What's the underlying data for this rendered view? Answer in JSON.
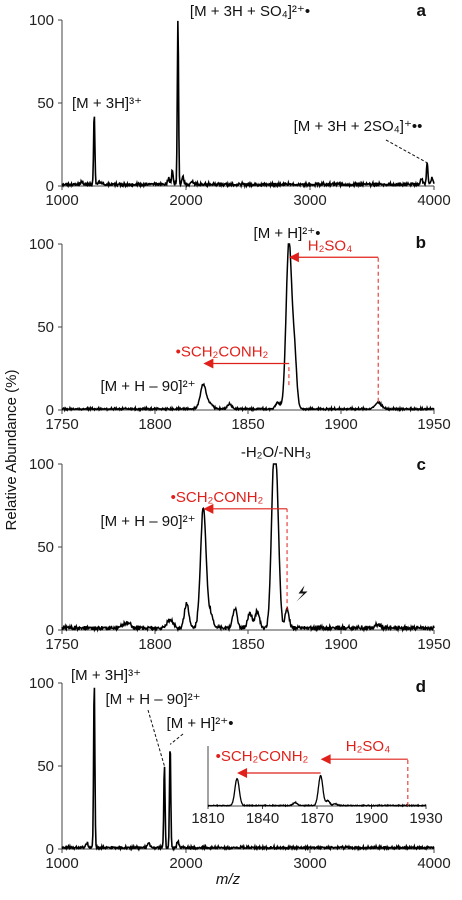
{
  "figure": {
    "ylabel": "Relative Abundance (%)",
    "xlabel": "m/z"
  },
  "colors": {
    "spectrum": "#000000",
    "annotation_red": "#e0201a",
    "leader": "#000000"
  },
  "chart_data": [
    {
      "type": "line",
      "panel": "a",
      "xlim": [
        1000,
        4000
      ],
      "ylim": [
        0,
        100
      ],
      "xticks": [
        1000,
        2000,
        3000,
        4000
      ],
      "yticks": [
        0,
        50,
        100
      ],
      "peaks": [
        {
          "x": 1160,
          "y": 2,
          "w": 8
        },
        {
          "x": 1260,
          "y": 43,
          "w": 5
        },
        {
          "x": 1300,
          "y": 2,
          "w": 8
        },
        {
          "x": 1860,
          "y": 4,
          "w": 8
        },
        {
          "x": 1890,
          "y": 9,
          "w": 6
        },
        {
          "x": 1935,
          "y": 100,
          "w": 5
        },
        {
          "x": 1975,
          "y": 5,
          "w": 8
        },
        {
          "x": 2050,
          "y": 2,
          "w": 10
        },
        {
          "x": 3900,
          "y": 3,
          "w": 10
        },
        {
          "x": 3945,
          "y": 13,
          "w": 6
        },
        {
          "x": 3985,
          "y": 4,
          "w": 8
        }
      ],
      "noise": 1.2,
      "labels": [
        {
          "text": "[M + 3H + SO₄]²⁺•",
          "x": 1935,
          "y": 100
        },
        {
          "text": "[M + 3H]³⁺",
          "x": 1260,
          "y": 43
        },
        {
          "text": "[M + 3H + 2SO₄]⁺••",
          "x": 3945,
          "y": 13
        }
      ]
    },
    {
      "type": "line",
      "panel": "b",
      "xlim": [
        1750,
        1950
      ],
      "ylim": [
        0,
        100
      ],
      "xticks": [
        1750,
        1800,
        1850,
        1900,
        1950
      ],
      "yticks": [
        0,
        50,
        100
      ],
      "peaks": [
        {
          "x": 1826,
          "y": 15,
          "w": 1.6
        },
        {
          "x": 1830,
          "y": 3,
          "w": 1.2
        },
        {
          "x": 1840,
          "y": 3,
          "w": 1.2
        },
        {
          "x": 1866,
          "y": 4,
          "w": 1.2
        },
        {
          "x": 1872,
          "y": 100,
          "w": 1.5
        },
        {
          "x": 1875,
          "y": 30,
          "w": 1.2
        },
        {
          "x": 1920,
          "y": 4,
          "w": 1.6
        }
      ],
      "noise": 0.8,
      "labels": [
        {
          "text": "[M + H]²⁺•",
          "x": 1872,
          "y": 100
        },
        {
          "text": "[M + H – 90]²⁺",
          "x": 1826,
          "y": 15
        }
      ],
      "arrows": [
        {
          "label": "H₂SO₄",
          "from": 1920,
          "to": 1872
        },
        {
          "label": "•SCH₂CONH₂",
          "from": 1872,
          "to": 1826
        }
      ]
    },
    {
      "type": "line",
      "panel": "c",
      "xlim": [
        1750,
        1950
      ],
      "ylim": [
        0,
        100
      ],
      "xticks": [
        1750,
        1800,
        1850,
        1900,
        1950
      ],
      "yticks": [
        0,
        50,
        100
      ],
      "peaks": [
        {
          "x": 1785,
          "y": 3,
          "w": 2
        },
        {
          "x": 1808,
          "y": 5,
          "w": 1.5
        },
        {
          "x": 1817,
          "y": 15,
          "w": 1.2
        },
        {
          "x": 1826,
          "y": 73,
          "w": 1.5
        },
        {
          "x": 1830,
          "y": 8,
          "w": 1.2
        },
        {
          "x": 1843,
          "y": 12,
          "w": 1.2
        },
        {
          "x": 1851,
          "y": 9,
          "w": 1.2
        },
        {
          "x": 1855,
          "y": 10,
          "w": 1.2
        },
        {
          "x": 1864,
          "y": 100,
          "w": 1.4
        },
        {
          "x": 1866,
          "y": 40,
          "w": 1.2
        },
        {
          "x": 1871,
          "y": 12,
          "w": 1.0
        },
        {
          "x": 1920,
          "y": 2,
          "w": 1.5
        }
      ],
      "noise": 1.5,
      "labels": [
        {
          "text": "-H₂O/-NH₃",
          "x": 1864,
          "y": 100
        },
        {
          "text": "[M + H – 90]²⁺",
          "x": 1826,
          "y": 73
        }
      ],
      "arrows": [
        {
          "label": "•SCH₂CONH₂",
          "from": 1871,
          "to": 1826
        }
      ],
      "lightning_at": 1875
    },
    {
      "type": "line",
      "panel": "d",
      "xlim": [
        1000,
        4000
      ],
      "ylim": [
        0,
        100
      ],
      "xticks": [
        1000,
        2000,
        3000,
        4000
      ],
      "yticks": [
        0,
        50,
        100
      ],
      "peaks": [
        {
          "x": 1200,
          "y": 3,
          "w": 10
        },
        {
          "x": 1260,
          "y": 100,
          "w": 5
        },
        {
          "x": 1700,
          "y": 3,
          "w": 10
        },
        {
          "x": 1826,
          "y": 50,
          "w": 5
        },
        {
          "x": 1872,
          "y": 63,
          "w": 5
        },
        {
          "x": 1935,
          "y": 4,
          "w": 8
        }
      ],
      "noise": 1.0,
      "labels": [
        {
          "text": "[M + 3H]³⁺",
          "x": 1260,
          "y": 100
        },
        {
          "text": "[M + H – 90]²⁺",
          "x": 1826,
          "y": 50
        },
        {
          "text": "[M + H]²⁺•",
          "x": 1872,
          "y": 63
        }
      ],
      "inset": {
        "xlim": [
          1810,
          1930
        ],
        "ylim": [
          0,
          100
        ],
        "xticks": [
          1810,
          1840,
          1870,
          1900,
          1930
        ],
        "peaks": [
          {
            "x": 1826,
            "y": 45,
            "w": 1.2
          },
          {
            "x": 1858,
            "y": 5,
            "w": 1.2
          },
          {
            "x": 1872,
            "y": 50,
            "w": 1.2
          },
          {
            "x": 1876,
            "y": 8,
            "w": 1.0
          },
          {
            "x": 1880,
            "y": 3,
            "w": 1.2
          }
        ],
        "noise": 0.8,
        "arrows": [
          {
            "label": "H₂SO₄",
            "from": 1920,
            "to": 1872
          },
          {
            "label": "•SCH₂CONH₂",
            "from": 1872,
            "to": 1826
          }
        ]
      }
    }
  ]
}
